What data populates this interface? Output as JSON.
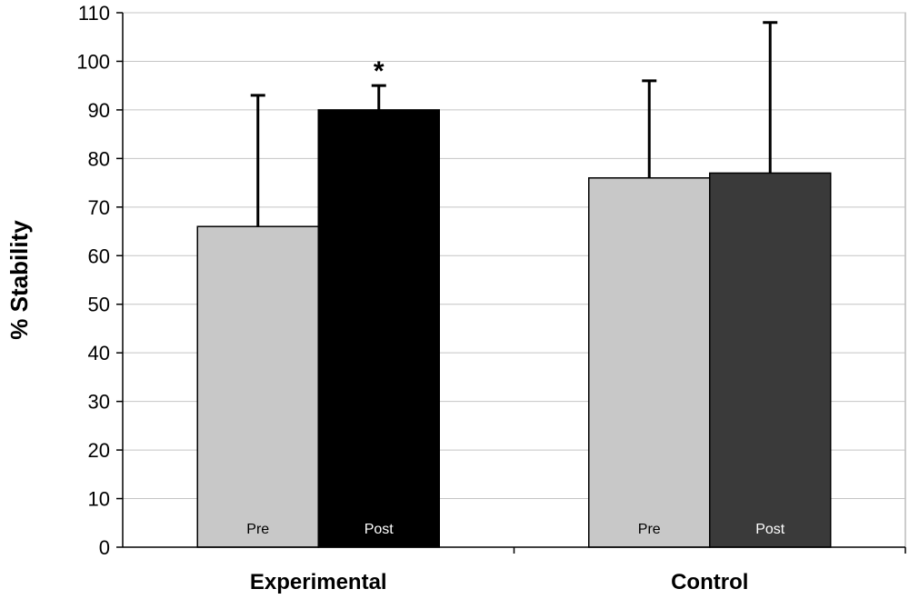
{
  "chart_data": {
    "type": "bar",
    "ylabel": "% Stability",
    "ylim": [
      0,
      110
    ],
    "yticks": [
      0,
      10,
      20,
      30,
      40,
      50,
      60,
      70,
      80,
      90,
      100,
      110
    ],
    "grid": true,
    "groups": [
      {
        "label": "Experimental",
        "bars": [
          {
            "label": "Pre",
            "value": 66,
            "error_upper": 93,
            "color": "#c8c8c8",
            "label_color": "#000000"
          },
          {
            "label": "Post",
            "value": 90,
            "error_upper": 95,
            "color": "#000000",
            "label_color": "#ffffff",
            "annotation": "*"
          }
        ]
      },
      {
        "label": "Control",
        "bars": [
          {
            "label": "Pre",
            "value": 76,
            "error_upper": 96,
            "color": "#c8c8c8",
            "label_color": "#000000"
          },
          {
            "label": "Post",
            "value": 77,
            "error_upper": 108,
            "color": "#3a3a3a",
            "label_color": "#ffffff"
          }
        ]
      }
    ]
  }
}
